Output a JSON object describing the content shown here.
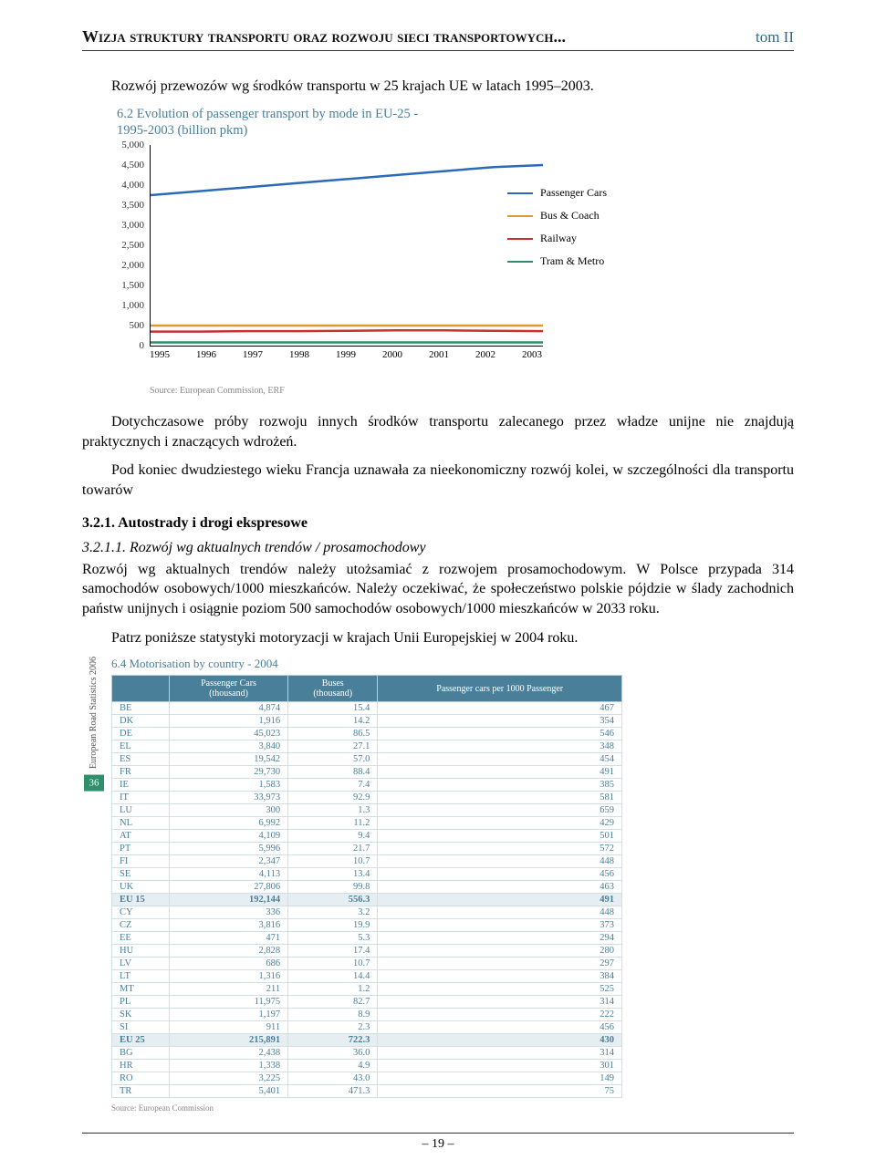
{
  "header": {
    "title": "Wizja struktury transportu oraz rozwoju sieci transportowych...",
    "volume": "tom II"
  },
  "intro_line": "Rozwój przewozów wg środków transportu w 25 krajach UE w latach 1995–2003.",
  "chart": {
    "type": "line",
    "title_l1": "6.2 Evolution of passenger transport by mode in EU-25 -",
    "title_l2": "1995-2003 (billion pkm)",
    "ylim": [
      0,
      5000
    ],
    "ytick_step": 500,
    "yticks": [
      "5,000",
      "4,500",
      "4,000",
      "3,500",
      "3,000",
      "2,500",
      "2,000",
      "1,500",
      "1,000",
      "500",
      "0"
    ],
    "xticks": [
      "1995",
      "1996",
      "1997",
      "1998",
      "1999",
      "2000",
      "2001",
      "2002",
      "2003"
    ],
    "series": [
      {
        "name": "Passenger Cars",
        "color": "#2b6ab8",
        "values": [
          3750,
          3850,
          3950,
          4050,
          4150,
          4250,
          4350,
          4450,
          4500
        ]
      },
      {
        "name": "Bus & Coach",
        "color": "#e09a2b",
        "values": [
          500,
          500,
          500,
          500,
          500,
          500,
          500,
          500,
          500
        ]
      },
      {
        "name": "Railway",
        "color": "#c93030",
        "values": [
          350,
          350,
          360,
          360,
          370,
          380,
          380,
          370,
          360
        ]
      },
      {
        "name": "Tram & Metro",
        "color": "#2f8f6a",
        "values": [
          80,
          80,
          80,
          80,
          80,
          80,
          80,
          80,
          80
        ]
      }
    ],
    "source": "Source: European Commission, ERF",
    "background_color": "#ffffff",
    "axis_color": "#000000",
    "label_fontsize": 11
  },
  "body": {
    "p1": "Dotychczasowe próby rozwoju innych środków transportu zalecanego przez władze unijne nie znajdują praktycznych i znaczących wdrożeń.",
    "p2": "Pod koniec dwudziestego wieku Francja uznawała za nieekonomiczny rozwój kolei, w szczególności dla transportu towarów",
    "sec_num": "3.2.1. Autostrady i drogi ekspresowe",
    "sub_num": "3.2.1.1. Rozwój wg aktualnych trendów / prosamochodowy",
    "p3": "Rozwój wg aktualnych trendów należy utożsamiać z rozwojem prosamochodowym. W Polsce przypada 314 samochodów osobowych/1000 mieszkańców. Należy oczekiwać, że społeczeństwo polskie pójdzie w ślady zachodnich państw unijnych i osiągnie poziom 500 samochodów osobowych/1000 mieszkańców w 2033 roku.",
    "p4": "Patrz poniższe statystyki motoryzacji w krajach Unii Europejskiej w 2004 roku."
  },
  "table": {
    "type": "table",
    "title": "6.4 Motorisation by country - 2004",
    "spine_text": "European Road Statistics 2006",
    "spine_page": "36",
    "columns": [
      "",
      "Passenger Cars (thousand)",
      "Buses (thousand)",
      "Passenger cars per 1000 Passenger"
    ],
    "header_bg": "#4a7f9a",
    "header_color": "#ffffff",
    "cell_border": "#cfe0e6",
    "rows": [
      [
        "BE",
        "4,874",
        "15.4",
        "467"
      ],
      [
        "DK",
        "1,916",
        "14.2",
        "354"
      ],
      [
        "DE",
        "45,023",
        "86.5",
        "546"
      ],
      [
        "EL",
        "3,840",
        "27.1",
        "348"
      ],
      [
        "ES",
        "19,542",
        "57.0",
        "454"
      ],
      [
        "FR",
        "29,730",
        "88.4",
        "491"
      ],
      [
        "IE",
        "1,583",
        "7.4",
        "385"
      ],
      [
        "IT",
        "33,973",
        "92.9",
        "581"
      ],
      [
        "LU",
        "300",
        "1.3",
        "659"
      ],
      [
        "NL",
        "6,992",
        "11.2",
        "429"
      ],
      [
        "AT",
        "4,109",
        "9.4",
        "501"
      ],
      [
        "PT",
        "5,996",
        "21.7",
        "572"
      ],
      [
        "FI",
        "2,347",
        "10.7",
        "448"
      ],
      [
        "SE",
        "4,113",
        "13.4",
        "456"
      ],
      [
        "UK",
        "27,806",
        "99.8",
        "463"
      ]
    ],
    "subtotal1": [
      "EU 15",
      "192,144",
      "556.3",
      "491"
    ],
    "rows2": [
      [
        "CY",
        "336",
        "3.2",
        "448"
      ],
      [
        "CZ",
        "3,816",
        "19.9",
        "373"
      ],
      [
        "EE",
        "471",
        "5.3",
        "294"
      ],
      [
        "HU",
        "2,828",
        "17.4",
        "280"
      ],
      [
        "LV",
        "686",
        "10.7",
        "297"
      ],
      [
        "LT",
        "1,316",
        "14.4",
        "384"
      ],
      [
        "MT",
        "211",
        "1.2",
        "525"
      ],
      [
        "PL",
        "11,975",
        "82.7",
        "314"
      ],
      [
        "SK",
        "1,197",
        "8.9",
        "222"
      ],
      [
        "SI",
        "911",
        "2.3",
        "456"
      ]
    ],
    "subtotal2": [
      "EU 25",
      "215,891",
      "722.3",
      "430"
    ],
    "rows3": [
      [
        "BG",
        "2,438",
        "36.0",
        "314"
      ],
      [
        "HR",
        "1,338",
        "4.9",
        "301"
      ],
      [
        "RO",
        "3,225",
        "43.0",
        "149"
      ],
      [
        "TR",
        "5,401",
        "471.3",
        "75"
      ]
    ],
    "source": "Source: European Commission"
  },
  "page_number": "– 19 –"
}
